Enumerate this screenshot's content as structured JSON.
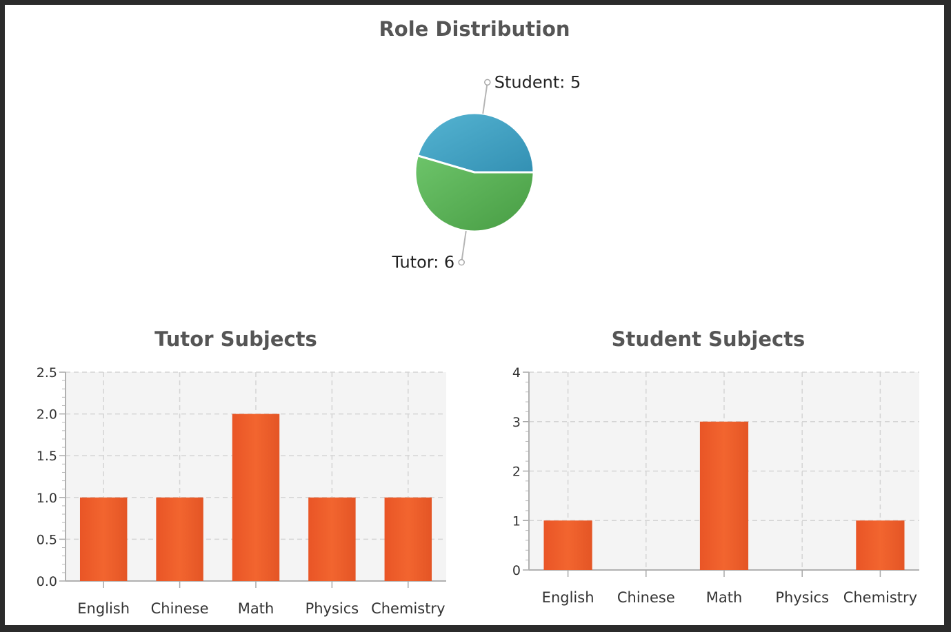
{
  "colors": {
    "student": "#3f9cbf",
    "tutor": "#56a951",
    "bar": "#ef5f2c",
    "plot_bg": "#f4f4f4",
    "grid": "#d4d4d4"
  },
  "chart_data": [
    {
      "type": "pie",
      "title": "Role Distribution",
      "slices": [
        {
          "label": "Student",
          "value": 5,
          "display": "Student: 5"
        },
        {
          "label": "Tutor",
          "value": 6,
          "display": "Tutor: 6"
        }
      ]
    },
    {
      "type": "bar",
      "title": "Tutor Subjects",
      "categories": [
        "English",
        "Chinese",
        "Math",
        "Physics",
        "Chemistry"
      ],
      "values": [
        1,
        1,
        2,
        1,
        1
      ],
      "ylim": [
        0,
        2.5
      ],
      "yticks": [
        "0.0",
        "0.5",
        "1.0",
        "1.5",
        "2.0",
        "2.5"
      ],
      "grid": true
    },
    {
      "type": "bar",
      "title": "Student Subjects",
      "categories": [
        "English",
        "Chinese",
        "Math",
        "Physics",
        "Chemistry"
      ],
      "values": [
        1,
        0,
        3,
        0,
        1
      ],
      "ylim": [
        0,
        4
      ],
      "yticks": [
        "0",
        "1",
        "2",
        "3",
        "4"
      ],
      "grid": true
    }
  ]
}
